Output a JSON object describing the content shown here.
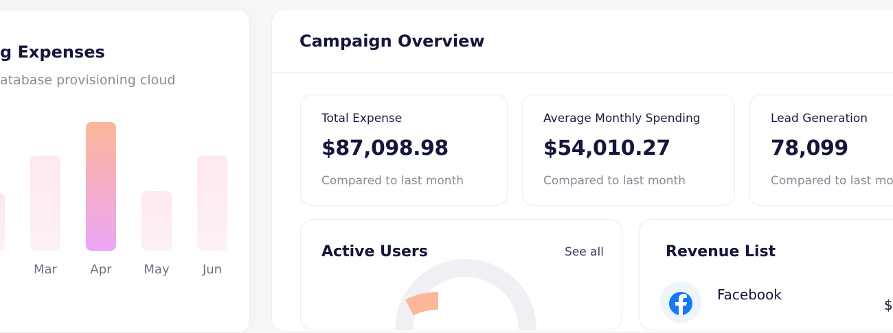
{
  "chart_data": {
    "type": "bar",
    "title": "g Expenses",
    "subtitle": "atabase provisioning cloud",
    "categories": [
      null,
      "Mar",
      "Apr",
      "May",
      "Jun"
    ],
    "values": [
      85,
      139,
      188,
      87,
      139
    ],
    "color": "#fde4ea",
    "highlight_color": [
      "#fdb79a",
      "#eba6f5"
    ],
    "highlight_index": 2
  },
  "campaign": {
    "title": "Campaign Overview",
    "stats": [
      {
        "label": "Total Expense",
        "value": "$87,098.98",
        "note": "Compared to last month"
      },
      {
        "label": "Average Monthly Spending",
        "value": "$54,010.27",
        "note": "Compared to last month"
      },
      {
        "label": "Lead Generation",
        "value": "78,099",
        "note": "Compared to last month"
      }
    ],
    "active_users": {
      "title": "Active Users",
      "link": "See all"
    },
    "revenue_list": {
      "title": "Revenue List",
      "items": [
        {
          "name": "Facebook",
          "amount": "$"
        }
      ]
    }
  }
}
